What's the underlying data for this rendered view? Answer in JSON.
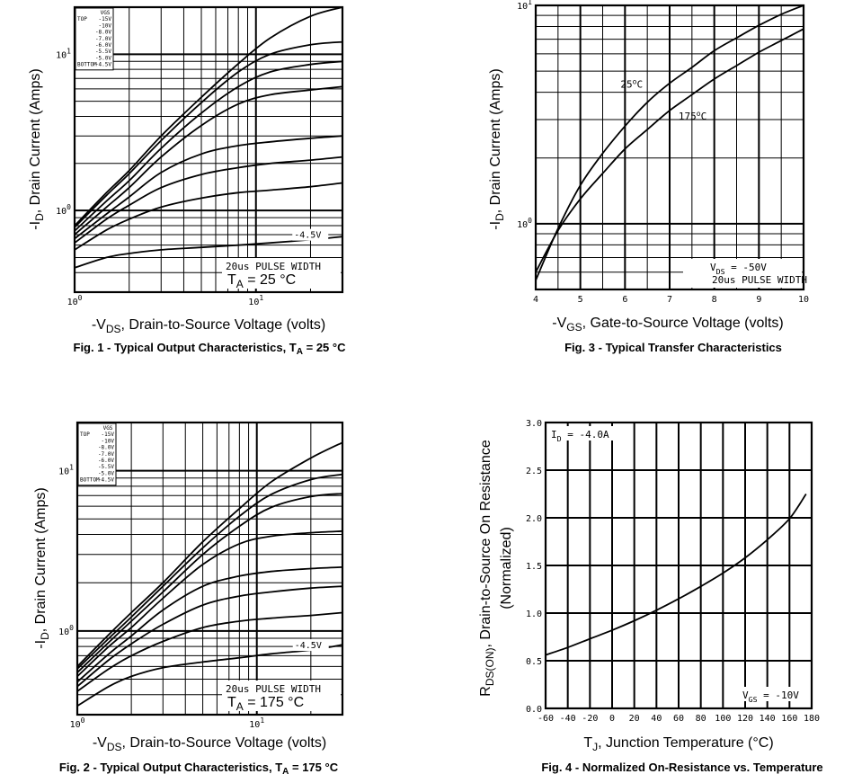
{
  "chart_data": [
    {
      "id": "fig1",
      "type": "line",
      "caption_main": "Fig. 1 - Typical Output Characteristics, T",
      "caption_sub": "A",
      "caption_end": " = 25 °C",
      "xlabel_pre": "-V",
      "xlabel_sub": "DS",
      "xlabel_post": ", Drain-to-Source Voltage (volts)",
      "ylabel_pre": "-I",
      "ylabel_sub": "D",
      "ylabel_post": ", Drain Current (Amps)",
      "xscale": "log",
      "yscale": "log",
      "xlim": [
        1,
        30
      ],
      "ylim": [
        0.3,
        20
      ],
      "xticks": [
        {
          "v": 1,
          "b": "10",
          "e": "0"
        },
        {
          "v": 10,
          "b": "10",
          "e": "1"
        }
      ],
      "yticks": [
        {
          "v": 1,
          "b": "10",
          "e": "0"
        },
        {
          "v": 10,
          "b": "10",
          "e": "1"
        }
      ],
      "legend_header": "VGS",
      "legend": [
        {
          "tag": "TOP",
          "label": "-15V"
        },
        {
          "tag": "",
          "label": "-10V"
        },
        {
          "tag": "",
          "label": "-8.0V"
        },
        {
          "tag": "",
          "label": "-7.0V"
        },
        {
          "tag": "",
          "label": "-6.0V"
        },
        {
          "tag": "",
          "label": "-5.5V"
        },
        {
          "tag": "",
          "label": "-5.0V"
        },
        {
          "tag": "BOTTOM",
          "label": "-4.5V"
        }
      ],
      "curve_label": "-4.5V",
      "note1": "20us PULSE WIDTH",
      "note2_pre": "T",
      "note2_sub": "A",
      "note2_post": " = 25 °C",
      "series": [
        {
          "name": "-15V",
          "x": [
            1,
            1.5,
            2,
            3,
            5,
            8,
            12,
            20,
            30
          ],
          "y": [
            0.8,
            1.3,
            1.8,
            3.0,
            5.3,
            8.7,
            12.7,
            17.5,
            20.0
          ]
        },
        {
          "name": "-10V",
          "x": [
            1,
            1.5,
            2,
            3,
            5,
            8,
            12,
            20,
            30
          ],
          "y": [
            0.78,
            1.25,
            1.72,
            2.8,
            4.9,
            7.7,
            10.0,
            11.5,
            12.0
          ]
        },
        {
          "name": "-8.0V",
          "x": [
            1,
            1.5,
            2,
            3,
            5,
            8,
            12,
            20,
            30
          ],
          "y": [
            0.74,
            1.15,
            1.55,
            2.5,
            4.2,
            6.2,
            7.7,
            8.6,
            9.0
          ]
        },
        {
          "name": "-7.0V",
          "x": [
            1,
            1.5,
            2,
            3,
            5,
            8,
            12,
            20,
            30
          ],
          "y": [
            0.7,
            1.05,
            1.4,
            2.2,
            3.5,
            4.8,
            5.5,
            5.9,
            6.2
          ]
        },
        {
          "name": "-6.0V",
          "x": [
            1,
            1.5,
            2,
            3,
            5,
            8,
            12,
            20,
            30
          ],
          "y": [
            0.66,
            0.95,
            1.22,
            1.75,
            2.3,
            2.6,
            2.75,
            2.9,
            3.0
          ]
        },
        {
          "name": "-5.5V",
          "x": [
            1,
            1.5,
            2,
            3,
            5,
            8,
            12,
            20,
            30
          ],
          "y": [
            0.62,
            0.88,
            1.08,
            1.4,
            1.7,
            1.88,
            2.0,
            2.1,
            2.2
          ]
        },
        {
          "name": "-5.0V",
          "x": [
            1,
            1.5,
            2,
            3,
            5,
            8,
            12,
            20,
            30
          ],
          "y": [
            0.56,
            0.75,
            0.88,
            1.05,
            1.2,
            1.3,
            1.35,
            1.42,
            1.5
          ]
        },
        {
          "name": "-4.5V",
          "x": [
            1,
            1.5,
            2,
            3,
            5,
            8,
            12,
            20,
            30
          ],
          "y": [
            0.43,
            0.5,
            0.53,
            0.56,
            0.58,
            0.6,
            0.62,
            0.65,
            0.68
          ]
        }
      ]
    },
    {
      "id": "fig2",
      "type": "line",
      "caption_main": "Fig. 2 - Typical Output Characteristics, T",
      "caption_sub": "A",
      "caption_end": " = 175 °C",
      "xlabel_pre": "-V",
      "xlabel_sub": "DS",
      "xlabel_post": ", Drain-to-Source Voltage (volts)",
      "ylabel_pre": "-I",
      "ylabel_sub": "D",
      "ylabel_post": ", Drain Current (Amps)",
      "xscale": "log",
      "yscale": "log",
      "xlim": [
        1,
        30
      ],
      "ylim": [
        0.3,
        20
      ],
      "xticks": [
        {
          "v": 1,
          "b": "10",
          "e": "0"
        },
        {
          "v": 10,
          "b": "10",
          "e": "1"
        }
      ],
      "yticks": [
        {
          "v": 1,
          "b": "10",
          "e": "0"
        },
        {
          "v": 10,
          "b": "10",
          "e": "1"
        }
      ],
      "legend_header": "VGS",
      "legend": [
        {
          "tag": "TOP",
          "label": "-15V"
        },
        {
          "tag": "",
          "label": "-10V"
        },
        {
          "tag": "",
          "label": "-8.0V"
        },
        {
          "tag": "",
          "label": "-7.0V"
        },
        {
          "tag": "",
          "label": "-6.0V"
        },
        {
          "tag": "",
          "label": "-5.5V"
        },
        {
          "tag": "",
          "label": "-5.0V"
        },
        {
          "tag": "BOTTOM",
          "label": "-4.5V"
        }
      ],
      "curve_label": "-4.5V",
      "note1": "20us PULSE WIDTH",
      "note2_pre": "T",
      "note2_sub": "A",
      "note2_post": " = 175 °C",
      "series": [
        {
          "name": "-15V",
          "x": [
            1,
            1.5,
            2,
            3,
            5,
            8,
            12,
            20,
            30
          ],
          "y": [
            0.6,
            0.95,
            1.3,
            2.0,
            3.6,
            5.8,
            8.5,
            12.0,
            15.0
          ]
        },
        {
          "name": "-10V",
          "x": [
            1,
            1.5,
            2,
            3,
            5,
            8,
            12,
            20,
            30
          ],
          "y": [
            0.58,
            0.9,
            1.22,
            1.9,
            3.3,
            5.2,
            7.1,
            8.8,
            9.5
          ]
        },
        {
          "name": "-8.0V",
          "x": [
            1,
            1.5,
            2,
            3,
            5,
            8,
            12,
            20,
            30
          ],
          "y": [
            0.55,
            0.85,
            1.15,
            1.75,
            3.0,
            4.5,
            5.9,
            6.9,
            7.2
          ]
        },
        {
          "name": "-7.0V",
          "x": [
            1,
            1.5,
            2,
            3,
            5,
            8,
            12,
            20,
            30
          ],
          "y": [
            0.52,
            0.8,
            1.05,
            1.6,
            2.6,
            3.5,
            3.9,
            4.1,
            4.2
          ]
        },
        {
          "name": "-6.0V",
          "x": [
            1,
            1.5,
            2,
            3,
            5,
            8,
            12,
            20,
            30
          ],
          "y": [
            0.48,
            0.72,
            0.93,
            1.35,
            1.9,
            2.2,
            2.35,
            2.45,
            2.5
          ]
        },
        {
          "name": "-5.5V",
          "x": [
            1,
            1.5,
            2,
            3,
            5,
            8,
            12,
            20,
            30
          ],
          "y": [
            0.45,
            0.66,
            0.83,
            1.1,
            1.45,
            1.65,
            1.75,
            1.85,
            1.9
          ]
        },
        {
          "name": "-5.0V",
          "x": [
            1,
            1.5,
            2,
            3,
            5,
            8,
            12,
            20,
            30
          ],
          "y": [
            0.42,
            0.58,
            0.7,
            0.86,
            1.05,
            1.15,
            1.2,
            1.25,
            1.3
          ]
        },
        {
          "name": "-4.5V",
          "x": [
            1,
            1.5,
            2,
            3,
            5,
            8,
            12,
            20,
            30
          ],
          "y": [
            0.34,
            0.45,
            0.52,
            0.59,
            0.64,
            0.68,
            0.72,
            0.76,
            0.82
          ]
        }
      ]
    },
    {
      "id": "fig3",
      "type": "line",
      "caption_main": "Fig. 3 - Typical Transfer Characteristics",
      "xlabel_pre": "-V",
      "xlabel_sub": "GS",
      "xlabel_post": ", Gate-to-Source Voltage (volts)",
      "ylabel_pre": "-I",
      "ylabel_sub": "D",
      "ylabel_post": ", Drain Current (Amps)",
      "xscale": "linear",
      "yscale": "log",
      "xlim": [
        4,
        10
      ],
      "ylim": [
        0.5,
        10
      ],
      "xticks": [
        {
          "v": 4,
          "label": "4"
        },
        {
          "v": 5,
          "label": "5"
        },
        {
          "v": 6,
          "label": "6"
        },
        {
          "v": 7,
          "label": "7"
        },
        {
          "v": 8,
          "label": "8"
        },
        {
          "v": 9,
          "label": "9"
        },
        {
          "v": 10,
          "label": "10"
        }
      ],
      "yticks": [
        {
          "v": 1,
          "b": "10",
          "e": "0"
        },
        {
          "v": 10,
          "b": "10",
          "e": "1"
        }
      ],
      "label_25": "25",
      "label_175": "175",
      "label_unit": "C",
      "note1_pre": "V",
      "note1_sub": "DS",
      "note1_post": " = -50V",
      "note2": "20us PULSE WIDTH",
      "series": [
        {
          "name": "25°C",
          "x": [
            4,
            4.5,
            5,
            5.5,
            6,
            6.5,
            7,
            7.5,
            8,
            8.5,
            9,
            9.5,
            10
          ],
          "y": [
            0.55,
            0.95,
            1.5,
            2.1,
            2.8,
            3.6,
            4.4,
            5.2,
            6.2,
            7.1,
            8.1,
            9.1,
            10.0
          ]
        },
        {
          "name": "175°C",
          "x": [
            4,
            4.5,
            5,
            5.5,
            6,
            6.5,
            7,
            7.5,
            8,
            8.5,
            9,
            9.5,
            10
          ],
          "y": [
            0.6,
            0.93,
            1.3,
            1.7,
            2.2,
            2.7,
            3.3,
            3.9,
            4.6,
            5.3,
            6.1,
            6.9,
            7.8
          ]
        }
      ]
    },
    {
      "id": "fig4",
      "type": "line",
      "caption_main": "Fig. 4 - Normalized On-Resistance vs. Temperature",
      "xlabel_pre": "T",
      "xlabel_sub": "J",
      "xlabel_post": ", Junction Temperature (°C)",
      "ylabel_pre": "R",
      "ylabel_sub": "DS(ON)",
      "ylabel_post": ", Drain-to-Source On Resistance",
      "ylabel2": "(Normalized)",
      "xscale": "linear",
      "yscale": "linear",
      "xlim": [
        -60,
        180
      ],
      "ylim": [
        0,
        3
      ],
      "xticks": [
        {
          "v": -60,
          "label": "-60"
        },
        {
          "v": -40,
          "label": "-40"
        },
        {
          "v": -20,
          "label": "-20"
        },
        {
          "v": 0,
          "label": "0"
        },
        {
          "v": 20,
          "label": "20"
        },
        {
          "v": 40,
          "label": "40"
        },
        {
          "v": 60,
          "label": "60"
        },
        {
          "v": 80,
          "label": "80"
        },
        {
          "v": 100,
          "label": "100"
        },
        {
          "v": 120,
          "label": "120"
        },
        {
          "v": 140,
          "label": "140"
        },
        {
          "v": 160,
          "label": "160"
        },
        {
          "v": 180,
          "label": "180"
        }
      ],
      "yticks": [
        {
          "v": 0,
          "label": "0.0"
        },
        {
          "v": 0.5,
          "label": "0.5"
        },
        {
          "v": 1,
          "label": "1.0"
        },
        {
          "v": 1.5,
          "label": "1.5"
        },
        {
          "v": 2,
          "label": "2.0"
        },
        {
          "v": 2.5,
          "label": "2.5"
        },
        {
          "v": 3,
          "label": "3.0"
        }
      ],
      "note_top_pre": "I",
      "note_top_sub": "D",
      "note_top_post": " = -4.0A",
      "note_bot_pre": "V",
      "note_bot_sub": "GS",
      "note_bot_post": " = -10V",
      "series": [
        {
          "name": "RDS(on)",
          "x": [
            -60,
            -40,
            -20,
            0,
            20,
            40,
            60,
            80,
            100,
            120,
            140,
            160,
            175
          ],
          "y": [
            0.56,
            0.64,
            0.73,
            0.82,
            0.92,
            1.03,
            1.15,
            1.28,
            1.42,
            1.58,
            1.77,
            1.99,
            2.25
          ]
        }
      ]
    }
  ]
}
